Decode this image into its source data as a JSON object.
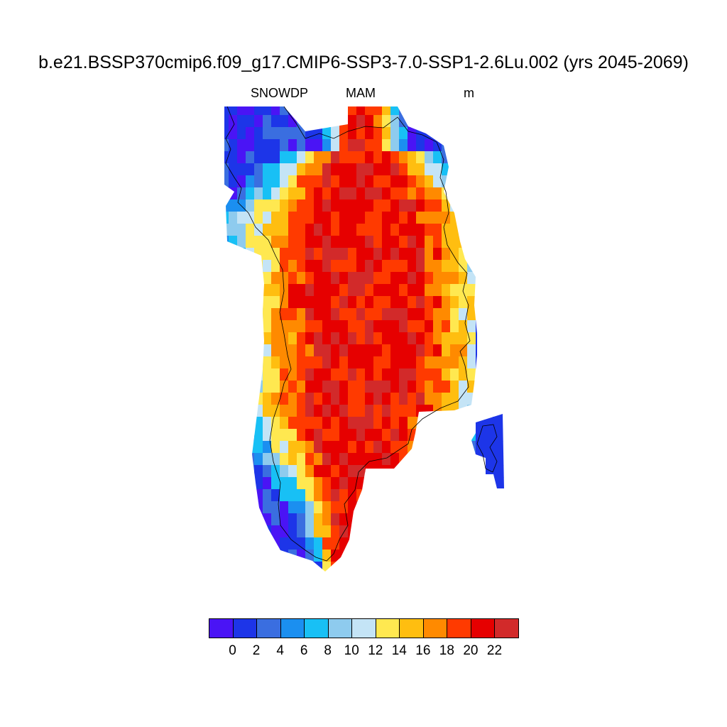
{
  "header": {
    "title": "b.e21.BSSP370cmip6.f09_g17.CMIP6-SSP3-7.0-SSP1-2.6Lu.002 (yrs 2045-2069)",
    "variable": "SNOWDP",
    "season": "MAM",
    "units": "m"
  },
  "colorbar": {
    "colors": [
      "#4a14f5",
      "#1d35e8",
      "#3a6ee0",
      "#1b8ff0",
      "#18c0f5",
      "#8ecbee",
      "#c4e4f6",
      "#ffe850",
      "#ffbe10",
      "#ff8a00",
      "#ff3a00",
      "#e60000",
      "#d22a2a"
    ],
    "tick_labels": [
      "0",
      "2",
      "4",
      "6",
      "8",
      "10",
      "12",
      "14",
      "16",
      "18",
      "20",
      "22"
    ]
  },
  "coastline_color": "#000000"
}
